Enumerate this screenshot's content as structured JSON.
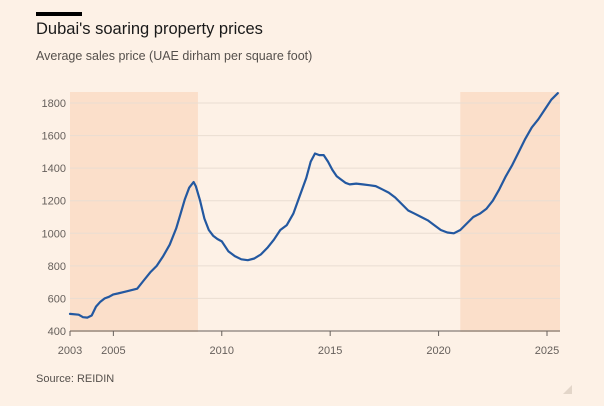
{
  "chart_data": {
    "type": "line",
    "title": "Dubai's soaring property prices",
    "subtitle": "Average sales price (UAE dirham per square foot)",
    "xlabel": "",
    "ylabel": "",
    "xlim": [
      2003,
      2025.6
    ],
    "ylim": [
      400,
      1860
    ],
    "x_ticks": [
      2003,
      2005,
      2010,
      2015,
      2020,
      2025
    ],
    "y_ticks": [
      400,
      600,
      800,
      1000,
      1200,
      1400,
      1600,
      1800
    ],
    "grid": "horizontal",
    "shaded_periods": [
      {
        "start": 2003,
        "end": 2008.9
      },
      {
        "start": 2021,
        "end": 2025.6
      }
    ],
    "series": [
      {
        "color": "#2358a0",
        "x": [
          2003.0,
          2003.4,
          2003.6,
          2003.8,
          2004.0,
          2004.2,
          2004.4,
          2004.6,
          2004.8,
          2005.0,
          2005.2,
          2005.5,
          2005.8,
          2006.1,
          2006.4,
          2006.7,
          2007.0,
          2007.3,
          2007.6,
          2007.9,
          2008.1,
          2008.3,
          2008.5,
          2008.7,
          2008.8,
          2009.0,
          2009.2,
          2009.4,
          2009.6,
          2009.8,
          2010.0,
          2010.3,
          2010.6,
          2010.9,
          2011.2,
          2011.5,
          2011.8,
          2012.1,
          2012.4,
          2012.7,
          2013.0,
          2013.3,
          2013.6,
          2013.9,
          2014.1,
          2014.3,
          2014.5,
          2014.7,
          2014.9,
          2015.1,
          2015.3,
          2015.5,
          2015.7,
          2015.9,
          2016.2,
          2016.5,
          2016.8,
          2017.1,
          2017.4,
          2017.7,
          2018.0,
          2018.3,
          2018.6,
          2018.9,
          2019.2,
          2019.5,
          2019.8,
          2020.1,
          2020.4,
          2020.7,
          2021.0,
          2021.3,
          2021.6,
          2021.9,
          2022.2,
          2022.5,
          2022.8,
          2023.1,
          2023.4,
          2023.7,
          2024.0,
          2024.3,
          2024.6,
          2024.9,
          2025.2,
          2025.5
        ],
        "y": [
          505,
          500,
          485,
          482,
          495,
          550,
          580,
          600,
          610,
          625,
          630,
          640,
          650,
          660,
          710,
          760,
          800,
          860,
          930,
          1030,
          1120,
          1210,
          1280,
          1315,
          1290,
          1200,
          1090,
          1020,
          985,
          965,
          950,
          890,
          860,
          840,
          835,
          845,
          870,
          910,
          960,
          1020,
          1050,
          1120,
          1230,
          1340,
          1440,
          1490,
          1480,
          1480,
          1440,
          1390,
          1350,
          1330,
          1310,
          1300,
          1305,
          1300,
          1295,
          1290,
          1270,
          1250,
          1220,
          1180,
          1140,
          1120,
          1100,
          1080,
          1050,
          1020,
          1005,
          1000,
          1020,
          1060,
          1100,
          1120,
          1150,
          1200,
          1270,
          1350,
          1420,
          1500,
          1580,
          1650,
          1700,
          1760,
          1820,
          1860
        ]
      }
    ]
  },
  "source": "Source: REIDIN"
}
